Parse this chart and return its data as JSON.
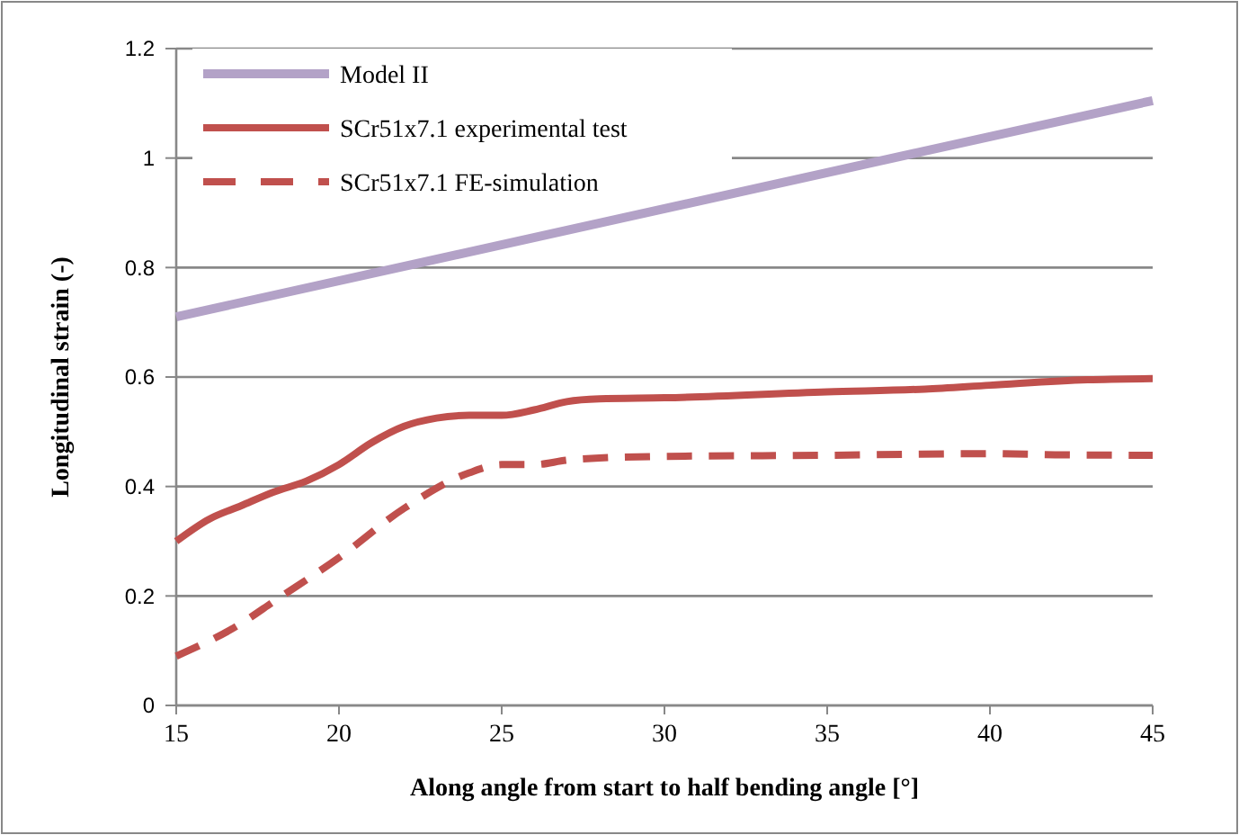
{
  "chart_data": {
    "type": "line",
    "xlabel": "Along angle from start to half bending angle [°]",
    "ylabel": "Longitudinal strain (-)",
    "xlim": [
      15,
      45
    ],
    "xticks": [
      15,
      20,
      25,
      30,
      35,
      40,
      45
    ],
    "ylim": [
      0,
      1.2
    ],
    "yticks": [
      0,
      0.2,
      0.4,
      0.6,
      0.8,
      1,
      1.2
    ],
    "grid": "y",
    "legend": "top left",
    "series": [
      {
        "name": "Model II",
        "color": "#b3a2c7",
        "x": [
          15,
          45
        ],
        "values": [
          0.71,
          1.105
        ]
      },
      {
        "name": "SCr51x7.1 experimental test",
        "color": "#c0504d",
        "x": [
          15,
          16,
          17,
          18,
          19,
          20,
          21,
          22,
          23,
          24,
          25,
          26,
          27,
          28,
          30,
          35,
          38,
          40,
          43,
          45
        ],
        "values": [
          0.3,
          0.34,
          0.365,
          0.39,
          0.41,
          0.44,
          0.48,
          0.51,
          0.525,
          0.53,
          0.53,
          0.54,
          0.555,
          0.56,
          0.562,
          0.573,
          0.578,
          0.585,
          0.595,
          0.597
        ]
      },
      {
        "name": "SCr51x7.1 FE-simulation",
        "color": "#c0504d",
        "line_style": "dashed",
        "x": [
          15,
          17,
          18,
          20,
          22,
          24,
          25,
          26,
          27,
          28,
          30,
          35,
          40,
          42,
          45
        ],
        "values": [
          0.09,
          0.15,
          0.19,
          0.27,
          0.36,
          0.425,
          0.44,
          0.44,
          0.448,
          0.452,
          0.455,
          0.457,
          0.46,
          0.458,
          0.457
        ]
      }
    ]
  }
}
